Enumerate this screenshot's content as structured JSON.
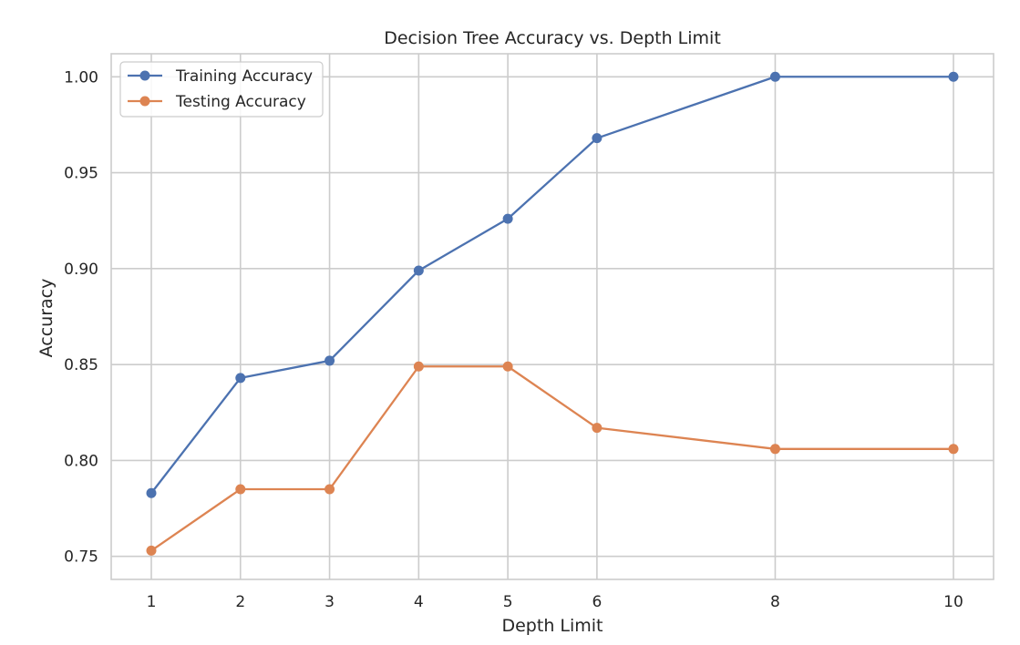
{
  "chart_data": {
    "type": "line",
    "title": "Decision Tree Accuracy vs. Depth Limit",
    "xlabel": "Depth Limit",
    "ylabel": "Accuracy",
    "x": [
      1,
      2,
      3,
      4,
      5,
      6,
      8,
      10
    ],
    "xticks": [
      "1",
      "2",
      "3",
      "4",
      "5",
      "6",
      "8",
      "10"
    ],
    "xlim": [
      0.55,
      10.45
    ],
    "yticks": [
      "0.75",
      "0.80",
      "0.85",
      "0.90",
      "0.95",
      "1.00"
    ],
    "ylim": [
      0.738,
      1.012
    ],
    "grid": true,
    "legend_position": "upper-left",
    "series": [
      {
        "name": "Training Accuracy",
        "color": "#4c72b0",
        "values": [
          0.783,
          0.843,
          0.852,
          0.899,
          0.926,
          0.968,
          1.0,
          1.0
        ]
      },
      {
        "name": "Testing Accuracy",
        "color": "#dd8452",
        "values": [
          0.753,
          0.785,
          0.785,
          0.849,
          0.849,
          0.817,
          0.806,
          0.806
        ]
      }
    ]
  }
}
